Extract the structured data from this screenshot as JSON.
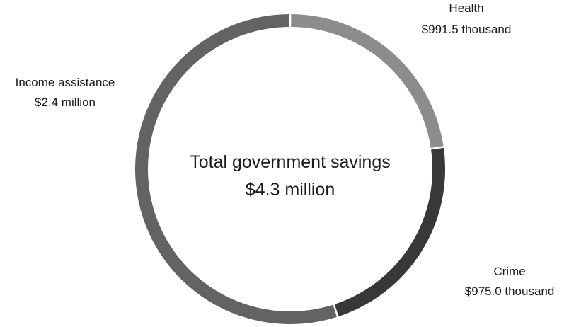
{
  "chart_data": {
    "type": "pie",
    "subtype": "donut",
    "center_title": "Total government savings",
    "center_value": "$4.3 million",
    "unit": "USD",
    "total": 4300000,
    "segments": [
      {
        "name": "Health",
        "value": 991500,
        "label": "$991.5 thousand",
        "color": "#8c8c8c"
      },
      {
        "name": "Crime",
        "value": 975000,
        "label": "$975.0 thousand",
        "color": "#383838"
      },
      {
        "name": "Income assistance",
        "value": 2400000,
        "label": "$2.4 million",
        "color": "#636363"
      }
    ],
    "start": "12 o'clock",
    "direction": "clockwise",
    "legend": "none"
  }
}
